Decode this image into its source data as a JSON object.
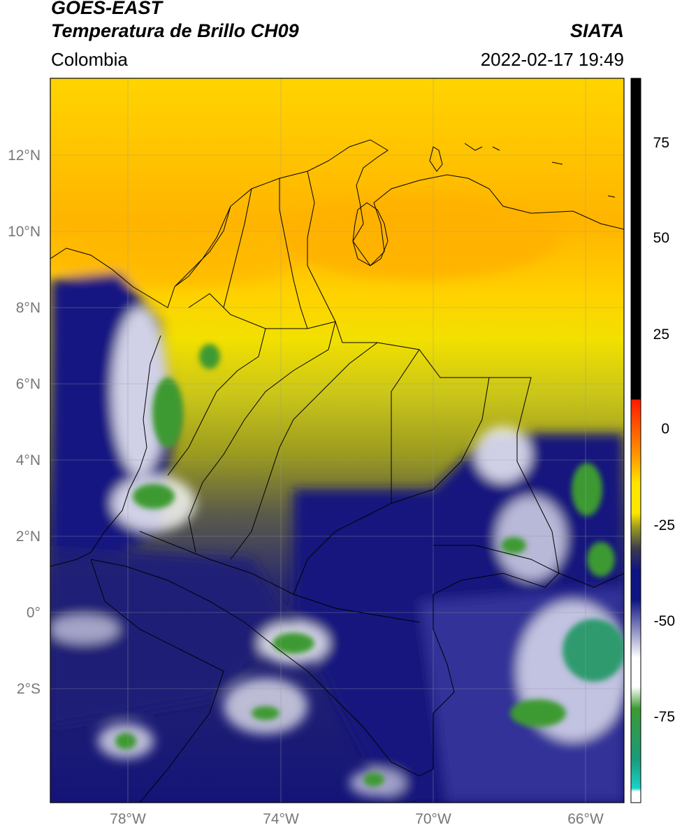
{
  "header": {
    "satellite": "GOES-EAST",
    "product": "Temperatura de Brillo CH09",
    "agency": "SIATA",
    "region": "Colombia",
    "datetime": "2022-02-17 19:49"
  },
  "map": {
    "lat_ticks": [
      "12°N",
      "10°N",
      "8°N",
      "6°N",
      "4°N",
      "2°N",
      "0°",
      "2°S"
    ],
    "lon_ticks": [
      "78°W",
      "74°W",
      "70°W",
      "66°W"
    ],
    "extent": {
      "lon_min": -80,
      "lon_max": -65,
      "lat_min": -5,
      "lat_max": 14
    }
  },
  "colorbar": {
    "ticks": [
      "75",
      "50",
      "25",
      "0",
      "-25",
      "-50",
      "-75"
    ],
    "tick_values": [
      75,
      50,
      25,
      0,
      -25,
      -50,
      -75
    ],
    "range": [
      -95,
      90
    ],
    "colors": {
      "hot": "#000000",
      "red": "#ff1a00",
      "orange": "#ff9600",
      "yellow": "#ffe600",
      "olive": "#9a9a20",
      "navy": "#0f1482",
      "white": "#ffffff",
      "green": "#3c9a32",
      "teal": "#1ad2c8"
    }
  }
}
